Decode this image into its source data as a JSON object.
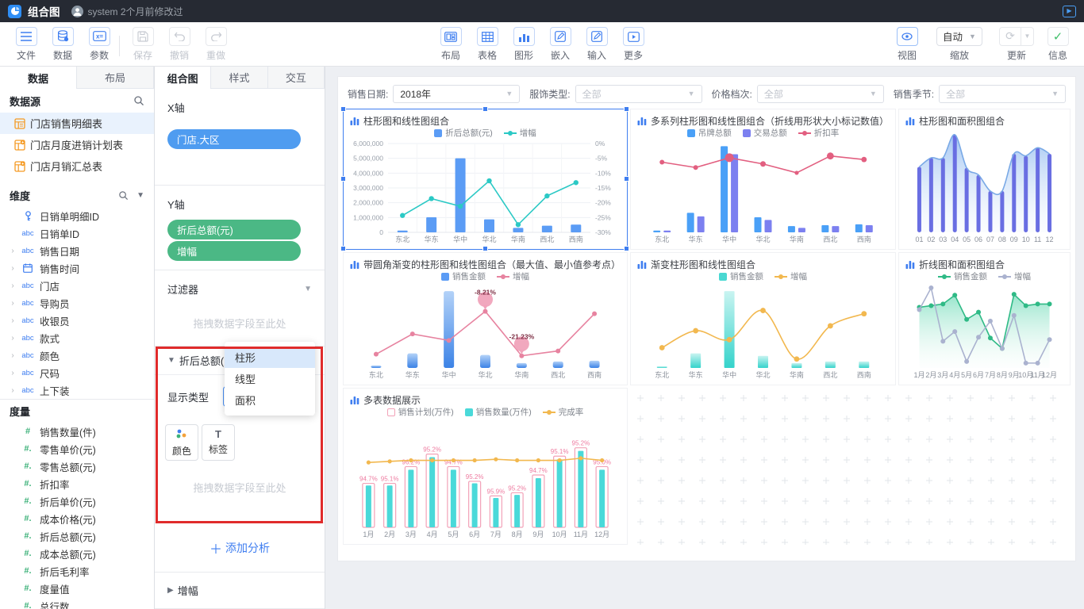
{
  "titlebar": {
    "title": "组合图",
    "modified": "system 2个月前修改过"
  },
  "toolbar": {
    "left": [
      {
        "label": "文件",
        "icon": "menu-icon",
        "enabled": true
      },
      {
        "label": "数据",
        "icon": "database-icon",
        "enabled": true
      },
      {
        "label": "参数",
        "icon": "params-icon",
        "enabled": true
      }
    ],
    "left_disabled": [
      {
        "label": "保存",
        "icon": "save-icon",
        "enabled": false
      },
      {
        "label": "撤销",
        "icon": "undo-icon",
        "enabled": false
      },
      {
        "label": "重做",
        "icon": "redo-icon",
        "enabled": false
      }
    ],
    "center": [
      {
        "label": "布局",
        "icon": "layout-icon"
      },
      {
        "label": "表格",
        "icon": "grid-icon"
      },
      {
        "label": "图形",
        "icon": "chart-icon"
      },
      {
        "label": "嵌入",
        "icon": "edit-icon"
      },
      {
        "label": "输入",
        "icon": "edit-icon"
      },
      {
        "label": "更多",
        "icon": "more-icon"
      }
    ],
    "right": {
      "view_label": "视图",
      "zoom_value": "自动",
      "zoom_label": "缩放",
      "update_label": "更新",
      "info_label": "信息"
    }
  },
  "sidebar": {
    "tabs": [
      {
        "label": "数据",
        "active": true
      },
      {
        "label": "布局",
        "active": false
      }
    ],
    "datasource": {
      "title": "数据源",
      "tables": [
        {
          "label": "门店销售明细表",
          "selected": true
        },
        {
          "label": "门店月度进销计划表",
          "selected": false
        },
        {
          "label": "门店月销汇总表",
          "selected": false
        }
      ]
    },
    "dimensions": {
      "title": "维度",
      "items": [
        {
          "icon": "key-icon",
          "label": "日销单明细ID",
          "expandable": false
        },
        {
          "icon": "abc-icon",
          "label": "日销单ID",
          "expandable": false
        },
        {
          "icon": "abc-icon",
          "label": "销售日期",
          "expandable": true
        },
        {
          "icon": "calendar-icon",
          "label": "销售时间",
          "expandable": true
        },
        {
          "icon": "abc-icon",
          "label": "门店",
          "expandable": true
        },
        {
          "icon": "abc-icon",
          "label": "导购员",
          "expandable": true
        },
        {
          "icon": "abc-icon",
          "label": "收银员",
          "expandable": true
        },
        {
          "icon": "abc-icon",
          "label": "款式",
          "expandable": true
        },
        {
          "icon": "abc-icon",
          "label": "颜色",
          "expandable": true
        },
        {
          "icon": "abc-icon",
          "label": "尺码",
          "expandable": true
        },
        {
          "icon": "abc-icon",
          "label": "上下装",
          "expandable": true
        }
      ]
    },
    "measures": {
      "title": "度量",
      "items": [
        {
          "icon": "#",
          "label": "销售数量(件)"
        },
        {
          "icon": "#.",
          "label": "零售单价(元)"
        },
        {
          "icon": "#.",
          "label": "零售总额(元)"
        },
        {
          "icon": "#.",
          "label": "折扣率"
        },
        {
          "icon": "#.",
          "label": "折后单价(元)"
        },
        {
          "icon": "#.",
          "label": "成本价格(元)"
        },
        {
          "icon": "#.",
          "label": "折后总额(元)"
        },
        {
          "icon": "#.",
          "label": "成本总额(元)"
        },
        {
          "icon": "#.",
          "label": "折后毛利率"
        },
        {
          "icon": "#.",
          "label": "度量值"
        },
        {
          "icon": "#.",
          "label": "总行数"
        }
      ]
    }
  },
  "panel": {
    "tabs": [
      {
        "label": "组合图",
        "active": true
      },
      {
        "label": "样式",
        "active": false
      },
      {
        "label": "交互",
        "active": false
      }
    ],
    "xaxis_label": "X轴",
    "xaxis_fields": [
      "门店.大区"
    ],
    "yaxis_label": "Y轴",
    "yaxis_fields": [
      "折后总额(元)",
      "增幅"
    ],
    "filter": {
      "label": "过滤器",
      "placeholder": "拖拽数据字段至此处"
    },
    "field": {
      "title": "折后总额(元)",
      "display_type_label": "显示类型",
      "select_value": "柱形",
      "options": [
        "柱形",
        "线型",
        "面积"
      ],
      "selected_option": 0,
      "buttons": [
        {
          "label": "颜色",
          "icon": "color-dots-icon"
        },
        {
          "label": "标签",
          "icon": "label-T-icon"
        }
      ],
      "placeholder": "拖拽数据字段至此处"
    },
    "add_analysis": "添加分析",
    "zengfu_section": "增幅",
    "highlight_color": "#e02b2b"
  },
  "canvas": {
    "filters": [
      {
        "label": "销售日期:",
        "value": "2018年",
        "muted": false
      },
      {
        "label": "服饰类型:",
        "value": "全部",
        "muted": true
      },
      {
        "label": "价格档次:",
        "value": "全部",
        "muted": true
      },
      {
        "label": "销售季节:",
        "value": "全部",
        "muted": true
      }
    ],
    "charts": [
      {
        "title": "柱形图和线性图组合",
        "type": "combo",
        "selected": true,
        "categories": [
          "东北",
          "华东",
          "华中",
          "华北",
          "华南",
          "西北",
          "西南"
        ],
        "axes": {
          "left": [
            "6,000,000",
            "5,000,000",
            "4,000,000",
            "3,000,000",
            "2,000,000",
            "1,000,000",
            "0"
          ],
          "right": [
            "0%",
            "-5%",
            "-10%",
            "-15%",
            "-20%",
            "-25%",
            "-30%"
          ]
        },
        "legend": [
          {
            "label": "折后总额(元)",
            "swatch": "square",
            "color": "#5b9cf5"
          },
          {
            "label": "增幅",
            "swatch": "line-dot",
            "color": "#2bc9c5"
          }
        ],
        "series": [
          {
            "kind": "bar",
            "name": "折后总额(元)",
            "color": "#5b9cf5",
            "w": 13,
            "domain": [
              0,
              6000000
            ],
            "values": [
              120000,
              1020000,
              5000000,
              880000,
              300000,
              450000,
              520000
            ]
          },
          {
            "kind": "line",
            "name": "增幅",
            "color": "#2bc9c5",
            "dot_r": 3.2,
            "domain": [
              -30,
              0
            ],
            "values": [
              -24.3,
              -18.6,
              -21.2,
              -12.6,
              -27.4,
              -17.7,
              -13.2
            ]
          }
        ]
      },
      {
        "title": "多系列柱形图和线性图组合（折线用形状大小标记数值）",
        "type": "combo",
        "categories": [
          "东北",
          "华东",
          "华中",
          "华北",
          "华南",
          "西北",
          "西南"
        ],
        "legend": [
          {
            "label": "吊牌总额",
            "swatch": "square",
            "color": "#4aa0f7"
          },
          {
            "label": "交易总额",
            "swatch": "square",
            "color": "#7c80f0"
          },
          {
            "label": "折扣率",
            "swatch": "line-dot",
            "color": "#e25f80"
          }
        ],
        "series": [
          {
            "kind": "bar",
            "name": "吊牌总额",
            "color": "#4aa0f7",
            "w": 9,
            "domain": [
              0,
              100
            ],
            "values": [
              2,
              22,
              97,
              17,
              7,
              8,
              9
            ]
          },
          {
            "kind": "bar",
            "name": "交易总额",
            "color": "#7c80f0",
            "w": 9,
            "domain": [
              0,
              100
            ],
            "values": [
              2,
              18,
              88,
              14,
              5,
              7,
              8
            ]
          },
          {
            "kind": "line",
            "name": "折扣率",
            "color": "#e25f80",
            "domain": [
              0,
              100
            ],
            "values": [
              79,
              73,
              84,
              77,
              67,
              86,
              82
            ],
            "dot_radii": [
              3,
              3,
              5.5,
              3.5,
              2.6,
              4.4,
              3.4
            ]
          }
        ]
      },
      {
        "title": "柱形图和面积图组合",
        "type": "combo",
        "categories": [
          "01",
          "02",
          "03",
          "04",
          "05",
          "06",
          "07",
          "08",
          "09",
          "10",
          "11",
          "12"
        ],
        "legend": [],
        "series": [
          {
            "kind": "line",
            "name": "面积",
            "color": "#79a9e6",
            "smooth": true,
            "domain": [
              0,
              100
            ],
            "dot_r": 0,
            "area": {
              "from": "#93bcf0",
              "to": "#eef5fd",
              "op1": 0.85,
              "op2": 0.25
            },
            "values": [
              65,
              74,
              74,
              97,
              64,
              57,
              41,
              41,
              78,
              76,
              84,
              78
            ]
          },
          {
            "kind": "bar",
            "name": "柱形",
            "color": "#696ee2",
            "w": 5,
            "rounded": true,
            "domain": [
              0,
              100
            ],
            "values": [
              65,
              74,
              74,
              97,
              64,
              57,
              41,
              41,
              78,
              76,
              84,
              78
            ]
          }
        ]
      },
      {
        "title": "带圆角渐变的柱形图和线性图组合（最大值、最小值参考点）",
        "type": "combo",
        "categories": [
          "东北",
          "华东",
          "华中",
          "华北",
          "华南",
          "西北",
          "西南"
        ],
        "legend": [
          {
            "label": "销售金额",
            "swatch": "square",
            "color": "#5b9cf5"
          },
          {
            "label": "增幅",
            "swatch": "line-dot",
            "color": "#e783a0"
          }
        ],
        "series": [
          {
            "kind": "bar",
            "name": "销售金额",
            "gradient": [
              "#b3d2f8",
              "#3c83e6"
            ],
            "w": 13,
            "rounded": true,
            "domain": [
              0,
              100
            ],
            "values": [
              3,
              18,
              95,
              16,
              6,
              8,
              9
            ]
          },
          {
            "kind": "line",
            "name": "增幅",
            "color": "#e783a0",
            "dot_r": 3,
            "domain": [
              0,
              100
            ],
            "values": [
              17,
              42,
              34,
              70,
              15,
              21,
              67
            ],
            "balloons": [
              {
                "index": 3,
                "label": "-8.21%"
              },
              {
                "index": 4,
                "label": "-21.23%"
              }
            ]
          }
        ]
      },
      {
        "title": "渐变柱形图和线性图组合",
        "type": "combo",
        "categories": [
          "东北",
          "华东",
          "华中",
          "华北",
          "华南",
          "西北",
          "西南"
        ],
        "legend": [
          {
            "label": "销售金额",
            "swatch": "square",
            "color": "#49d8d2"
          },
          {
            "label": "增幅",
            "swatch": "line-dot",
            "color": "#f2b84f"
          }
        ],
        "series": [
          {
            "kind": "bar",
            "name": "销售金额",
            "gradient": [
              "#c9f4f1",
              "#35d3cb"
            ],
            "w": 13,
            "domain": [
              0,
              100
            ],
            "values": [
              2,
              18,
              95,
              15,
              6,
              8,
              8
            ]
          },
          {
            "kind": "line",
            "name": "增幅",
            "color": "#f2b84f",
            "smooth": true,
            "dot_r": 3.4,
            "domain": [
              0,
              100
            ],
            "values": [
              25,
              46,
              35,
              71,
              11,
              52,
              67
            ]
          }
        ]
      },
      {
        "title": "折线图和面积图组合",
        "type": "combo",
        "categories": [
          "1月",
          "2月",
          "3月",
          "4月",
          "5月",
          "6月",
          "7月",
          "8月",
          "9月",
          "10月",
          "11月",
          "12月"
        ],
        "legend": [
          {
            "label": "销售金额",
            "swatch": "line-dot",
            "color": "#2fba86"
          },
          {
            "label": "增幅",
            "swatch": "line-dot",
            "color": "#aab2cf"
          }
        ],
        "series": [
          {
            "kind": "line",
            "name": "销售金额",
            "color": "#2fba86",
            "dot_r": 3,
            "domain": [
              0,
              100
            ],
            "area": {
              "from": "#84e0c2",
              "to": "#f4fcf9",
              "op1": 0.85,
              "op2": 0.2
            },
            "values": [
              75,
              77,
              79,
              90,
              60,
              69,
              37,
              24,
              91,
              77,
              79,
              79
            ]
          },
          {
            "kind": "line",
            "name": "增幅",
            "color": "#aab2cf",
            "dot_r": 3,
            "domain": [
              0,
              100
            ],
            "values": [
              72,
              99,
              33,
              45,
              8,
              38,
              58,
              24,
              65,
              6,
              6,
              35
            ]
          }
        ]
      },
      {
        "title": "多表数据展示",
        "type": "combo",
        "categories": [
          "1月",
          "2月",
          "3月",
          "4月",
          "5月",
          "6月",
          "7月",
          "8月",
          "9月",
          "10月",
          "11月",
          "12月"
        ],
        "legend": [
          {
            "label": "销售计划(万件)",
            "swatch": "outline",
            "color": "#f2a2b8"
          },
          {
            "label": "销售数量(万件)",
            "swatch": "square",
            "color": "#4ad9d9"
          },
          {
            "label": "完成率",
            "swatch": "line-dot",
            "color": "#f2b84f"
          }
        ],
        "series": [
          {
            "kind": "bar-outline",
            "name": "销售计划(万件)",
            "color": "#f2a2b8",
            "w": 15,
            "domain": [
              0,
              100
            ],
            "values": [
              42,
              42,
              58,
              70,
              58,
              44,
              30,
              33,
              50,
              68,
              76,
              58
            ],
            "labels": [
              "94.7%",
              "95.1%",
              "96.2%",
              "95.2%",
              "94.7%",
              "95.2%",
              "95.9%",
              "95.2%",
              "94.7%",
              "95.1%",
              "95.2%",
              "95.0%"
            ],
            "label_color": "#ee7ba0"
          },
          {
            "kind": "bar",
            "name": "销售数量(万件)",
            "color": "#4ad9d9",
            "w": 7,
            "domain": [
              0,
              100
            ],
            "values": [
              40,
              40,
              55,
              67,
              55,
              42,
              28,
              31,
              47,
              65,
              73,
              55
            ]
          },
          {
            "kind": "line",
            "name": "完成率",
            "color": "#f2b84f",
            "dot_r": 2.6,
            "domain": [
              0,
              100
            ],
            "values": [
              62,
              63,
              64,
              64,
              64,
              64,
              65,
              64,
              64,
              64,
              66,
              64
            ]
          }
        ]
      }
    ]
  }
}
